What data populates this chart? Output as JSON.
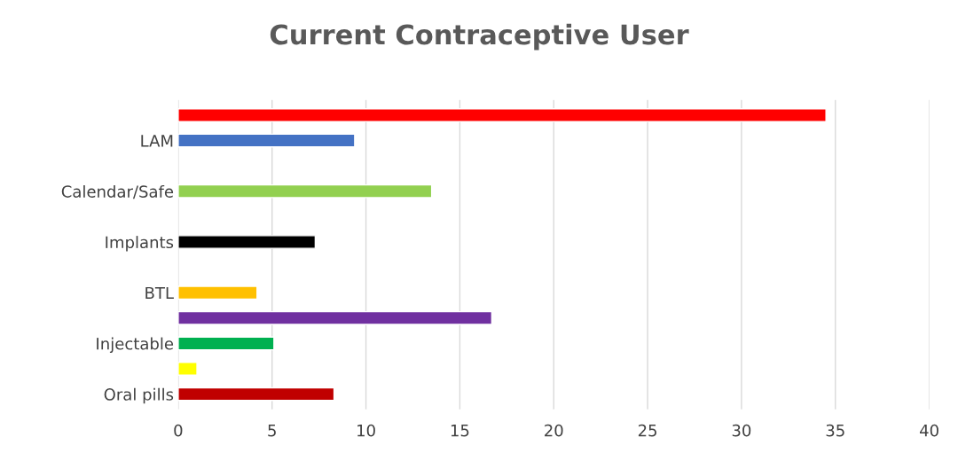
{
  "chart_data": {
    "type": "bar",
    "orientation": "horizontal",
    "title": "Current Contraceptive User",
    "categories": [
      null,
      "LAM",
      null,
      "Calendar/Safe",
      null,
      "Implants",
      null,
      "BTL",
      null,
      "Injectable",
      null,
      "Oral pills"
    ],
    "values": [
      34.5,
      9.4,
      null,
      13.5,
      null,
      7.3,
      null,
      4.2,
      16.7,
      5.1,
      1.0,
      8.3
    ],
    "colors": [
      "#ff0000",
      "#4472c4",
      null,
      "#92d050",
      null,
      "#000000",
      null,
      "#ffc000",
      "#7030a0",
      "#00b050",
      "#ffff00",
      "#c00000"
    ],
    "xlim": [
      0,
      40
    ],
    "xticks": [
      0,
      5,
      10,
      15,
      20,
      25,
      30,
      35,
      40
    ],
    "grid": "x",
    "legend": false
  }
}
